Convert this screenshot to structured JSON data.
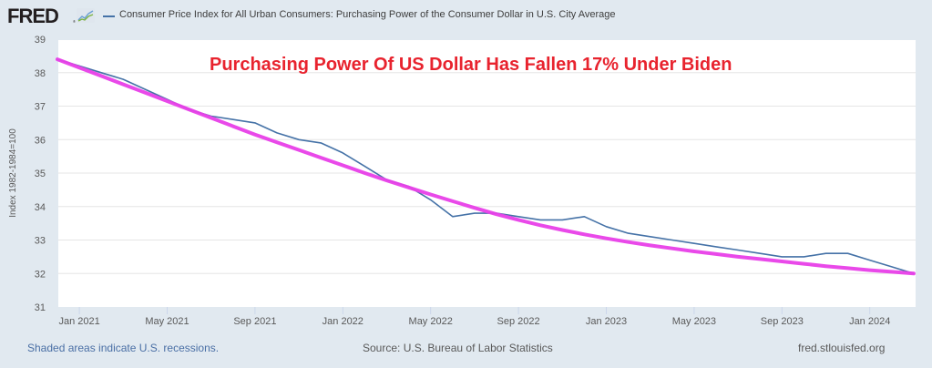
{
  "header": {
    "logo_text": "FRED",
    "logo_mark": "®",
    "legend_label": "Consumer Price Index for All Urban Consumers: Purchasing Power of the Consumer Dollar in U.S. City Average",
    "series_color": "#4572a7",
    "logo_icon": "chart-line-icon"
  },
  "footer": {
    "recession_note": "Shaded areas indicate U.S. recessions.",
    "source": "Source: U.S. Bureau of Labor Statistics",
    "site": "fred.stlouisfed.org"
  },
  "chart_data": {
    "type": "line",
    "title": "Purchasing Power Of US Dollar Has Fallen 17% Under Biden",
    "title_color": "#e8232e",
    "xlabel": "",
    "ylabel": "Index 1982-1984=100",
    "ylim": [
      31,
      39
    ],
    "yticks": [
      31,
      32,
      33,
      34,
      35,
      36,
      37,
      38,
      39
    ],
    "xticks": [
      {
        "label": "Jan 2021",
        "month_index": 1
      },
      {
        "label": "May 2021",
        "month_index": 5
      },
      {
        "label": "Sep 2021",
        "month_index": 9
      },
      {
        "label": "Jan 2022",
        "month_index": 13
      },
      {
        "label": "May 2022",
        "month_index": 17
      },
      {
        "label": "Sep 2022",
        "month_index": 21
      },
      {
        "label": "Jan 2023",
        "month_index": 25
      },
      {
        "label": "May 2023",
        "month_index": 29
      },
      {
        "label": "Sep 2023",
        "month_index": 33
      },
      {
        "label": "Jan 2024",
        "month_index": 37
      }
    ],
    "x_start": "Dec 2020",
    "x_end": "Mar 2024",
    "grid": true,
    "series": [
      {
        "name": "Consumer Price Index for All Urban Consumers: Purchasing Power of the Consumer Dollar in U.S. City Average",
        "color": "#4572a7",
        "values": [
          38.4,
          38.2,
          38.0,
          37.8,
          37.5,
          37.2,
          36.9,
          36.7,
          36.6,
          36.5,
          36.2,
          36.0,
          35.9,
          35.6,
          35.2,
          34.8,
          34.6,
          34.2,
          33.7,
          33.8,
          33.8,
          33.7,
          33.6,
          33.6,
          33.7,
          33.4,
          33.2,
          33.1,
          33.0,
          32.9,
          32.8,
          32.7,
          32.6,
          32.5,
          32.5,
          32.6,
          32.6,
          32.4,
          32.2,
          32.0
        ]
      },
      {
        "name": "Trend (annotation)",
        "color": "#e83fe8",
        "values": [
          38.4,
          38.15,
          37.9,
          37.65,
          37.4,
          37.15,
          36.9,
          36.65,
          36.4,
          36.15,
          35.92,
          35.69,
          35.46,
          35.23,
          35.0,
          34.78,
          34.57,
          34.36,
          34.16,
          33.96,
          33.77,
          33.6,
          33.44,
          33.3,
          33.17,
          33.05,
          32.94,
          32.84,
          32.75,
          32.66,
          32.58,
          32.5,
          32.43,
          32.36,
          32.29,
          32.22,
          32.16,
          32.1,
          32.05,
          32.0
        ]
      }
    ]
  }
}
